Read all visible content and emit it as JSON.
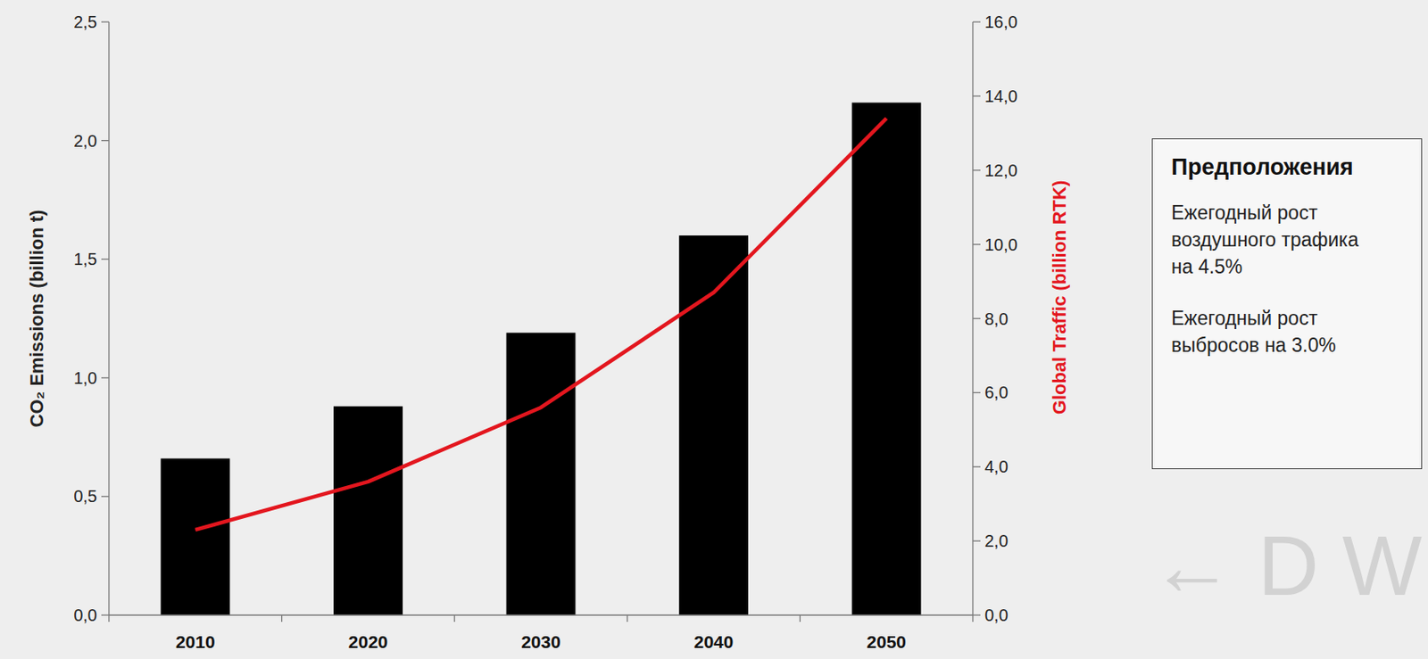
{
  "chart_data": {
    "type": "bar",
    "categories": [
      "2010",
      "2020",
      "2030",
      "2040",
      "2050"
    ],
    "y_label": "CO₂ Emissions (billion t)",
    "y2_label": "Global Traffic (billion RTK)",
    "ylim": [
      0,
      2.5
    ],
    "yticks": [
      {
        "value": 0,
        "label": "0,0"
      },
      {
        "value": 0.5,
        "label": "0,5"
      },
      {
        "value": 1,
        "label": "1,0"
      },
      {
        "value": 1.5,
        "label": "1,5"
      },
      {
        "value": 2,
        "label": "2,0"
      },
      {
        "value": 2.5,
        "label": "2,5"
      }
    ],
    "y2lim": [
      0,
      16
    ],
    "y2ticks": [
      {
        "value": 0,
        "label": "0,0"
      },
      {
        "value": 2,
        "label": "2,0"
      },
      {
        "value": 4,
        "label": "4,0"
      },
      {
        "value": 6,
        "label": "6,0"
      },
      {
        "value": 8,
        "label": "8,0"
      },
      {
        "value": 10,
        "label": "10,0"
      },
      {
        "value": 12,
        "label": "12,0"
      },
      {
        "value": 14,
        "label": "14,0"
      },
      {
        "value": 16,
        "label": "16,0"
      }
    ],
    "grid": false,
    "series": [
      {
        "type": "bar",
        "color": "#000000",
        "values": [
          0.66,
          0.88,
          1.19,
          1.6,
          2.16
        ]
      },
      {
        "type": "line",
        "color": "#e3161e",
        "axis": "y2",
        "values": [
          2.3,
          3.6,
          5.6,
          8.7,
          13.4
        ]
      }
    ],
    "annotations": {
      "title": "Предположения",
      "items": [
        "Ежегодный рост воздушного трафика на 4.5%",
        "Ежегодный рост выбросов на 3.0%"
      ]
    },
    "watermark": "← D W"
  }
}
